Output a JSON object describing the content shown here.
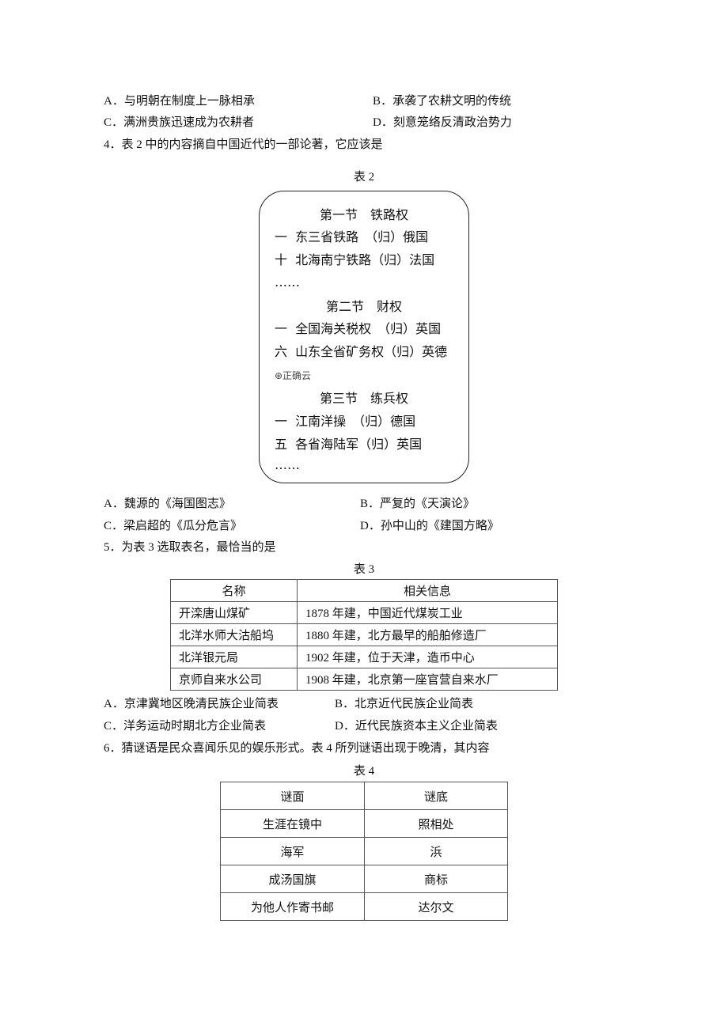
{
  "q3": {
    "options": [
      "A．与明朝在制度上一脉相承",
      "B．承袭了农耕文明的传统",
      "C．满洲贵族迅速成为农耕者",
      "D．刻意笼络反清政治势力"
    ]
  },
  "q4": {
    "stem": "4．表 2 中的内容摘自中国近代的一部论著，它应该是",
    "caption": "表 2",
    "box_lines": [
      "第一节　铁路权",
      "一  东三省铁路　（归）俄国",
      "十  北海南宁铁路（归）法国",
      "……",
      "第二节　财权",
      "一  全国海关税权　（归）英国",
      "六  山东全省矿务权（归）英德",
      "⊕正确云",
      "第三节　练兵权",
      "一  江南洋操　（归）德国",
      "五  各省海陆军（归）英国",
      "……"
    ],
    "options": [
      "A．魏源的《海国图志》",
      "B．严复的《天演论》",
      "C．梁启超的《瓜分危言》",
      "D．孙中山的《建国方略》"
    ]
  },
  "q5": {
    "stem": "5．为表 3 选取表名，最恰当的是",
    "caption": "表 3",
    "table": {
      "header": [
        "名称",
        "相关信息"
      ],
      "rows": [
        [
          "开滦唐山煤矿",
          "1878 年建，中国近代煤炭工业"
        ],
        [
          "北洋水师大沽船坞",
          "1880 年建，北方最早的船舶修造厂"
        ],
        [
          "北洋银元局",
          "1902 年建，位于天津，造币中心"
        ],
        [
          "京师自来水公司",
          "1908 年建，北京第一座官营自来水厂"
        ]
      ]
    },
    "options": [
      "A．京津冀地区晚清民族企业简表",
      "B．北京近代民族企业简表",
      "C．洋务运动时期北方企业简表",
      "D．近代民族资本主义企业简表"
    ]
  },
  "q6": {
    "stem": "6．猜谜语是民众喜闻乐见的娱乐形式。表 4 所列谜语出现于晚清，其内容",
    "caption": "表 4",
    "table": {
      "header": [
        "谜面",
        "谜底"
      ],
      "rows": [
        [
          "生涯在镜中",
          "照相处"
        ],
        [
          "海军",
          "浜"
        ],
        [
          "成汤国旗",
          "商标"
        ],
        [
          "为他人作寄书邮",
          "达尔文"
        ]
      ]
    }
  }
}
